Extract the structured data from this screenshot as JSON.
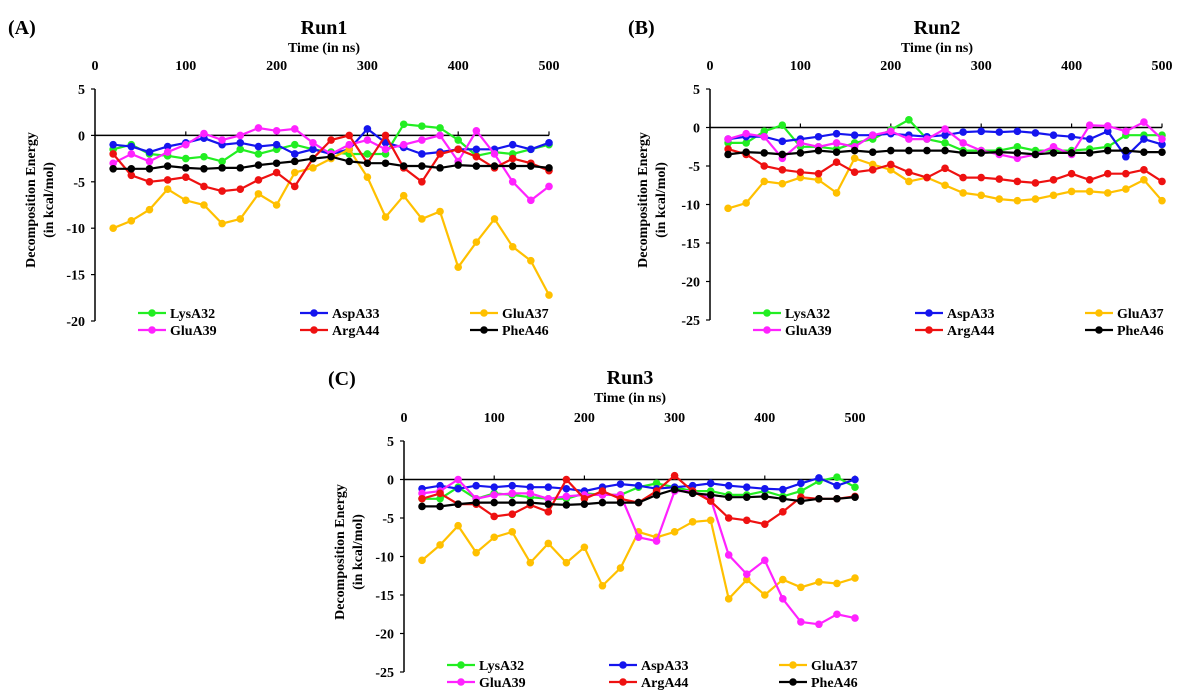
{
  "figure": {
    "panel_labels": [
      "(A)",
      "(B)",
      "(C)"
    ]
  },
  "colors": {
    "LysA32": "#22ee22",
    "AspA33": "#1515ee",
    "GluA37": "#ffc000",
    "GluA39": "#ff22ff",
    "ArgA44": "#ee1111",
    "PheA46": "#000000"
  },
  "chart_data": [
    {
      "type": "line",
      "panel": "(A)",
      "title": "Run1",
      "xlabel": "Time (in ns)",
      "ylabel_lines": [
        "Decomposition Energy",
        "(in kcal/mol)"
      ],
      "x_ticks": [
        0,
        100,
        200,
        300,
        400,
        500
      ],
      "y_ticks": [
        5,
        0,
        -5,
        -10,
        -15,
        -20
      ],
      "xlim": [
        0,
        500
      ],
      "ylim": [
        -20,
        5
      ],
      "x_axis_position": "top",
      "grid": false,
      "legend": "bottom",
      "x": [
        20,
        40,
        60,
        80,
        100,
        120,
        140,
        160,
        180,
        200,
        220,
        240,
        260,
        280,
        300,
        320,
        340,
        360,
        380,
        400,
        420,
        440,
        460,
        480,
        500
      ],
      "series": [
        {
          "name": "LysA32",
          "values": [
            -1.5,
            -1,
            -2,
            -2.2,
            -2.5,
            -2.3,
            -2.8,
            -1.5,
            -2,
            -1.5,
            -1,
            -1.5,
            -1.8,
            -2,
            -2,
            -2,
            1.2,
            1,
            0.8,
            -0.5,
            -2.2,
            -1.8,
            -2,
            -1.5,
            -1
          ]
        },
        {
          "name": "AspA33",
          "values": [
            -1,
            -1.2,
            -1.8,
            -1.2,
            -0.8,
            -0.3,
            -1,
            -0.8,
            -1.2,
            -1,
            -2,
            -1.5,
            -2,
            -1.5,
            0.7,
            -0.8,
            -1.3,
            -2,
            -1.8,
            -1.5,
            -1.5,
            -1.5,
            -1,
            -1.5,
            -0.8
          ]
        },
        {
          "name": "GluA37",
          "values": [
            -10,
            -9.2,
            -8,
            -5.8,
            -7,
            -7.5,
            -9.5,
            -9,
            -6.3,
            -7.5,
            -4,
            -3.5,
            -2.5,
            -1.5,
            -4.5,
            -8.8,
            -6.5,
            -9,
            -8.2,
            -14.2,
            -11.5,
            -9,
            -12,
            -13.5,
            -17.2
          ]
        },
        {
          "name": "GluA39",
          "values": [
            -3,
            -2,
            -2.8,
            -1.8,
            -1,
            0.2,
            -0.5,
            0,
            0.8,
            0.5,
            0.7,
            -0.8,
            -2,
            -1,
            -0.5,
            -1.5,
            -1,
            -0.5,
            0,
            -2.8,
            0.5,
            -2,
            -5,
            -7,
            -5.5
          ]
        },
        {
          "name": "ArgA44",
          "values": [
            -2,
            -4.3,
            -5,
            -4.8,
            -4.5,
            -5.5,
            -6,
            -5.8,
            -4.8,
            -4,
            -5.5,
            -2.5,
            -0.5,
            0,
            -3,
            0,
            -3.5,
            -5,
            -2,
            -1.5,
            -2.3,
            -3.5,
            -2.5,
            -3,
            -3.8
          ]
        },
        {
          "name": "PheA46",
          "values": [
            -3.6,
            -3.6,
            -3.6,
            -3.3,
            -3.5,
            -3.6,
            -3.5,
            -3.5,
            -3.2,
            -3,
            -2.8,
            -2.5,
            -2.3,
            -2.8,
            -3,
            -3,
            -3.3,
            -3.3,
            -3.5,
            -3.2,
            -3.3,
            -3.3,
            -3.3,
            -3.3,
            -3.5
          ]
        }
      ]
    },
    {
      "type": "line",
      "panel": "(B)",
      "title": "Run2",
      "xlabel": "Time (in ns)",
      "ylabel_lines": [
        "Decomposition Energy",
        "(in kcal/mol)"
      ],
      "x_ticks": [
        0,
        100,
        200,
        300,
        400,
        500
      ],
      "y_ticks": [
        5,
        0,
        -5,
        -10,
        -15,
        -20,
        -25
      ],
      "xlim": [
        0,
        500
      ],
      "ylim": [
        -25,
        5
      ],
      "x_axis_position": "top",
      "grid": false,
      "legend": "bottom",
      "x": [
        20,
        40,
        60,
        80,
        100,
        120,
        140,
        160,
        180,
        200,
        220,
        240,
        260,
        280,
        300,
        320,
        340,
        360,
        380,
        400,
        420,
        440,
        460,
        480,
        500
      ],
      "series": [
        {
          "name": "LysA32",
          "values": [
            -2,
            -2,
            -0.5,
            0.3,
            -2.5,
            -2.5,
            -2.8,
            -2,
            -1.5,
            -0.3,
            1,
            -1.5,
            -2,
            -3,
            -3,
            -3,
            -2.5,
            -3,
            -3,
            -3,
            -2.8,
            -2.5,
            -1,
            -1,
            -1
          ]
        },
        {
          "name": "AspA33",
          "values": [
            -1.5,
            -1.2,
            -1.2,
            -1.8,
            -1.5,
            -1.2,
            -0.8,
            -1,
            -1,
            -0.8,
            -1,
            -1.2,
            -1,
            -0.6,
            -0.5,
            -0.6,
            -0.5,
            -0.7,
            -1,
            -1.2,
            -1.5,
            -0.5,
            -3.8,
            -1.5,
            -2.2
          ]
        },
        {
          "name": "GluA37",
          "values": [
            -10.5,
            -9.8,
            -7,
            -7.3,
            -6.5,
            -6.8,
            -8.5,
            -4,
            -4.8,
            -5.5,
            -7,
            -6.5,
            -7.5,
            -8.5,
            -8.8,
            -9.3,
            -9.5,
            -9.3,
            -8.8,
            -8.3,
            -8.3,
            -8.5,
            -8,
            -6.8,
            -9.5
          ]
        },
        {
          "name": "GluA39",
          "values": [
            -1.5,
            -0.8,
            -1.2,
            -4,
            -2,
            -2.5,
            -2,
            -2.5,
            -1,
            -0.5,
            -1.5,
            -1.5,
            -0.2,
            -2,
            -3,
            -3.5,
            -4,
            -3.5,
            -2.5,
            -3.5,
            0.3,
            0.2,
            -0.5,
            0.7,
            -1.5
          ]
        },
        {
          "name": "ArgA44",
          "values": [
            -2.8,
            -3.5,
            -5,
            -5.5,
            -5.8,
            -6,
            -4.5,
            -5.8,
            -5.5,
            -4.8,
            -5.8,
            -6.5,
            -5.3,
            -6.5,
            -6.5,
            -6.7,
            -7,
            -7.2,
            -6.8,
            -6,
            -6.8,
            -6,
            -6,
            -5.5,
            -7
          ]
        },
        {
          "name": "PheA46",
          "values": [
            -3.5,
            -3.2,
            -3.3,
            -3.5,
            -3.3,
            -3,
            -3.2,
            -3,
            -3.2,
            -3,
            -3,
            -3,
            -3,
            -3.3,
            -3.3,
            -3.2,
            -3.3,
            -3.5,
            -3.3,
            -3.3,
            -3.3,
            -3,
            -3,
            -3.2,
            -3.2
          ]
        }
      ]
    },
    {
      "type": "line",
      "panel": "(C)",
      "title": "Run3",
      "xlabel": "Time (in ns)",
      "ylabel_lines": [
        "Decomposition Energy",
        "(in kcal/mol)"
      ],
      "x_ticks": [
        0,
        100,
        200,
        300,
        400,
        500
      ],
      "y_ticks": [
        5,
        0,
        -5,
        -10,
        -15,
        -20,
        -25
      ],
      "xlim": [
        0,
        500
      ],
      "ylim": [
        -25,
        5
      ],
      "x_axis_position": "top",
      "grid": false,
      "legend": "bottom",
      "x": [
        20,
        40,
        60,
        80,
        100,
        120,
        140,
        160,
        180,
        200,
        220,
        240,
        260,
        280,
        300,
        320,
        340,
        360,
        380,
        400,
        420,
        440,
        460,
        480,
        500
      ],
      "series": [
        {
          "name": "LysA32",
          "values": [
            -2.5,
            -2.5,
            -1,
            -2.5,
            -1.8,
            -2,
            -2.3,
            -2.5,
            -2.5,
            -1.8,
            -2,
            -2,
            -1,
            -0.5,
            -1,
            -1.5,
            -1.5,
            -2,
            -2,
            -1.5,
            -2.2,
            -1.5,
            -0.2,
            0.3,
            -1
          ]
        },
        {
          "name": "AspA33",
          "values": [
            -1.2,
            -0.8,
            -1.2,
            -0.8,
            -1,
            -0.8,
            -1,
            -1,
            -1.2,
            -1.5,
            -1,
            -0.6,
            -0.8,
            -1.2,
            -1,
            -0.8,
            -0.5,
            -0.8,
            -1,
            -1.2,
            -1.3,
            -0.5,
            0.2,
            -0.8,
            0
          ]
        },
        {
          "name": "GluA37",
          "values": [
            -10.5,
            -8.5,
            -6,
            -9.5,
            -7.5,
            -6.8,
            -10.8,
            -8.3,
            -10.8,
            -8.8,
            -13.8,
            -11.5,
            -6.8,
            -7.5,
            -6.8,
            -5.5,
            -5.3,
            -15.5,
            -13,
            -15,
            -13,
            -14,
            -13.3,
            -13.5,
            -12.8
          ]
        },
        {
          "name": "GluA39",
          "values": [
            -1.8,
            -1.5,
            0,
            -2.5,
            -2,
            -1.8,
            -1.8,
            -2.5,
            -2.2,
            -2,
            -2,
            -2,
            -7.5,
            -8,
            -1.5,
            -1.5,
            -2.5,
            -9.8,
            -12.3,
            -10.5,
            -15.5,
            -18.5,
            -18.8,
            -17.5,
            -18
          ]
        },
        {
          "name": "ArgA44",
          "values": [
            -2.5,
            -1.8,
            -3.2,
            -3.2,
            -4.8,
            -4.5,
            -3.3,
            -4.2,
            0,
            -2.5,
            -1.5,
            -2.5,
            -3,
            -1.5,
            0.5,
            -1.5,
            -2.8,
            -5,
            -5.3,
            -5.8,
            -4.2,
            -2.3,
            -2.5,
            -2.5,
            -2.2
          ]
        },
        {
          "name": "PheA46",
          "values": [
            -3.5,
            -3.5,
            -3.2,
            -3,
            -3,
            -3,
            -3,
            -3.2,
            -3.3,
            -3.2,
            -3,
            -3,
            -3,
            -2,
            -1.3,
            -1.8,
            -2,
            -2.3,
            -2.3,
            -2.2,
            -2.5,
            -2.8,
            -2.5,
            -2.5,
            -2.3
          ]
        }
      ]
    }
  ]
}
